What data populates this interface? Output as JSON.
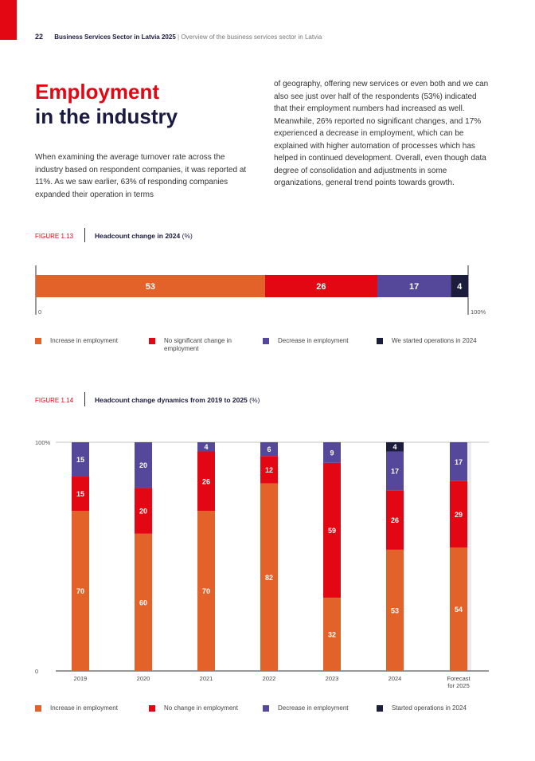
{
  "header": {
    "page_number": "22",
    "doc_title": "Business Services Sector in Latvia 2025",
    "separator": "|",
    "section": "Overview of the business services sector in Latvia"
  },
  "title": {
    "line1": "Employment",
    "line2": "in the industry"
  },
  "lead_text": "When examining the average turnover rate across the industry based on respondent companies, it was reported at 11%. As we saw earlier, 63% of responding companies expanded their operation in terms",
  "col2_text": "of geography, offering new services or even both and we can also see just over half of the respondents (53%) indicated that their employment numbers had increased as well. Meanwhile, 26% reported no significant changes, and 17% experienced a decrease in employment, which can be explained with higher automation of processes which has helped in continued development. Overall, even though data degree of consolidation and adjustments in some organizations, general trend points towards growth.",
  "colors": {
    "increase": "#e2622a",
    "nochange": "#e30613",
    "decrease": "#55479a",
    "started": "#1c1c3c",
    "accent": "#e30613"
  },
  "fig13": {
    "label": "FIGURE 1.13",
    "title": "Headcount change in 2024",
    "unit": "(%)",
    "legend": [
      {
        "label": "Increase in employment",
        "color": "#e2622a"
      },
      {
        "label": "No significant change in employment",
        "color": "#e30613"
      },
      {
        "label": "Decrease in employment",
        "color": "#55479a"
      },
      {
        "label": "We started operations in 2024",
        "color": "#1c1c3c"
      }
    ]
  },
  "fig14": {
    "label": "FIGURE 1.14",
    "title": "Headcount change dynamics from 2019 to 2025",
    "unit": "(%)",
    "legend": [
      {
        "label": "Increase in employment",
        "color": "#e2622a"
      },
      {
        "label": "No change in employment",
        "color": "#e30613"
      },
      {
        "label": "Decrease in employment",
        "color": "#55479a"
      },
      {
        "label": "Started operations in 2024",
        "color": "#1c1c3c"
      }
    ]
  },
  "chart_data": [
    {
      "type": "bar",
      "orientation": "horizontal-stacked",
      "title": "Headcount change in 2024",
      "unit": "(%)",
      "categories": [
        "2024"
      ],
      "axis_labels": [
        "0",
        "100%"
      ],
      "xlim": [
        0,
        100
      ],
      "series": [
        {
          "name": "Increase in employment",
          "values": [
            53
          ],
          "color": "#e2622a"
        },
        {
          "name": "No significant change in employment",
          "values": [
            26
          ],
          "color": "#e30613"
        },
        {
          "name": "Decrease in employment",
          "values": [
            17
          ],
          "color": "#55479a"
        },
        {
          "name": "We started operations in 2024",
          "values": [
            4
          ],
          "color": "#1c1c3c"
        }
      ]
    },
    {
      "type": "bar",
      "orientation": "vertical-stacked",
      "title": "Headcount change dynamics from 2019 to 2025",
      "unit": "(%)",
      "categories": [
        "2019",
        "2020",
        "2021",
        "2022",
        "2023",
        "2024",
        "Forecast for 2025"
      ],
      "ytick_labels": [
        "0",
        "100%"
      ],
      "ylim": [
        0,
        100
      ],
      "series": [
        {
          "name": "Increase in employment",
          "values": [
            70,
            60,
            70,
            82,
            32,
            53,
            54
          ],
          "color": "#e2622a"
        },
        {
          "name": "No change in employment",
          "values": [
            15,
            20,
            26,
            12,
            59,
            26,
            29
          ],
          "color": "#e30613"
        },
        {
          "name": "Decrease in employment",
          "values": [
            15,
            20,
            4,
            6,
            9,
            17,
            17
          ],
          "color": "#55479a"
        },
        {
          "name": "Started operations in 2024",
          "values": [
            0,
            0,
            0,
            0,
            0,
            4,
            0
          ],
          "color": "#1c1c3c"
        }
      ]
    }
  ]
}
